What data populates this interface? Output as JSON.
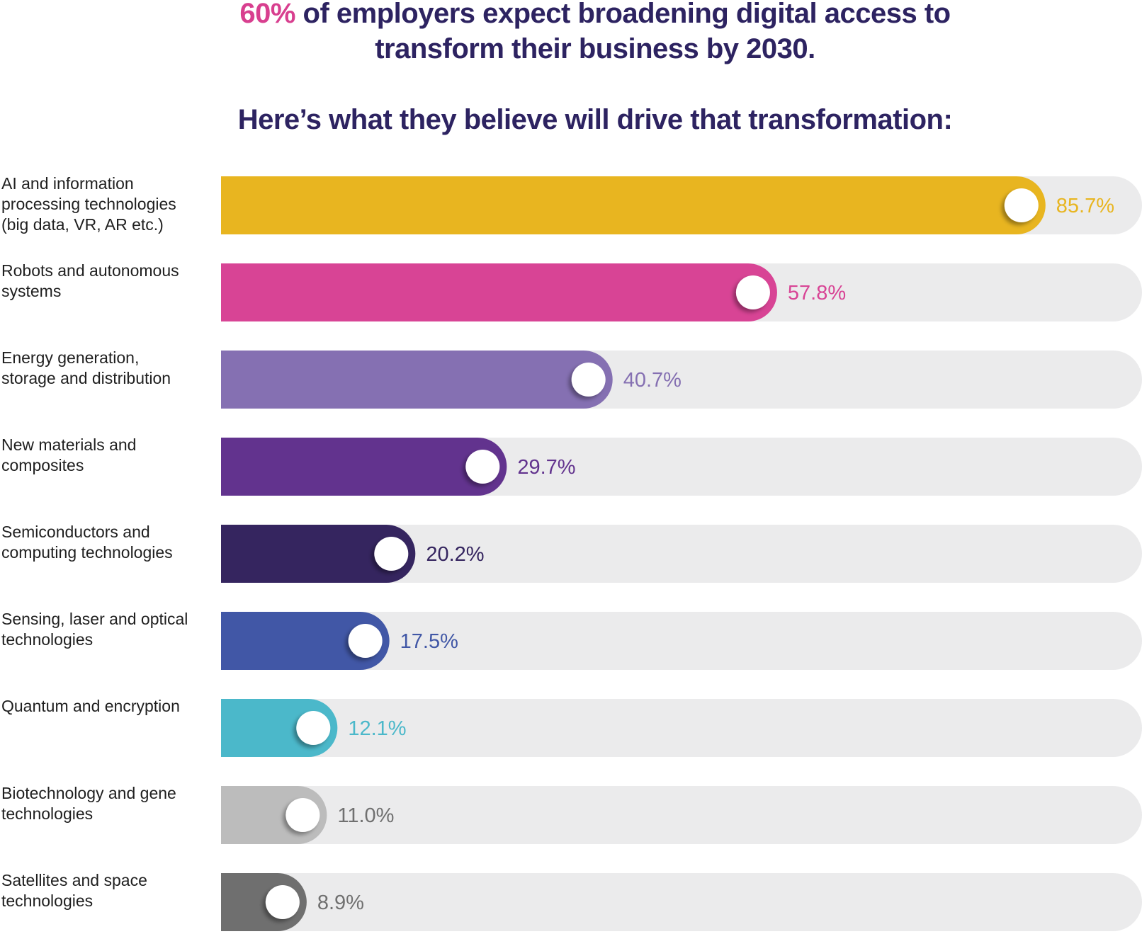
{
  "header": {
    "highlight": "60%",
    "line1_rest": " of employers expect broadening digital access to",
    "line2": "transform their business by 2030.",
    "subtitle": "Here’s what they believe will drive that transformation:",
    "highlight_color": "#d83f8f",
    "title_color": "#2d2361"
  },
  "chart_data": {
    "type": "bar",
    "orientation": "horizontal",
    "title": "60% of employers expect broadening digital access to transform their business by 2030.",
    "subtitle": "Here’s what they believe will drive that transformation:",
    "xlim": [
      0,
      100
    ],
    "value_suffix": "%",
    "track_color": "#ebebec",
    "categories": [
      [
        "AI and information",
        "processing technologies",
        "(big data, VR, AR etc.)"
      ],
      [
        "Robots and autonomous",
        "systems"
      ],
      [
        "Energy generation,",
        "storage and distribution"
      ],
      [
        "New materials and",
        "composites"
      ],
      [
        "Semiconductors and",
        "computing technologies"
      ],
      [
        "Sensing, laser and optical",
        "technologies"
      ],
      [
        "Quantum and encryption"
      ],
      [
        "Biotechnology and gene",
        "technologies"
      ],
      [
        "Satellites and space",
        "technologies"
      ]
    ],
    "values": [
      85.7,
      57.8,
      40.7,
      29.7,
      20.2,
      17.5,
      12.1,
      11.0,
      8.9
    ],
    "value_labels": [
      "85.7%",
      "57.8%",
      "40.7%",
      "29.7%",
      "20.2%",
      "17.5%",
      "12.1%",
      "11.0%",
      "8.9%"
    ],
    "colors": [
      "#e8b520",
      "#d84495",
      "#8570b2",
      "#62338e",
      "#35255f",
      "#4157a6",
      "#4bb8ca",
      "#bcbcbc",
      "#6f6f6f"
    ],
    "label_colors": [
      "#e8b520",
      "#d84495",
      "#8570b2",
      "#62338e",
      "#35255f",
      "#4157a6",
      "#4bb8ca",
      "#707070",
      "#707070"
    ]
  }
}
